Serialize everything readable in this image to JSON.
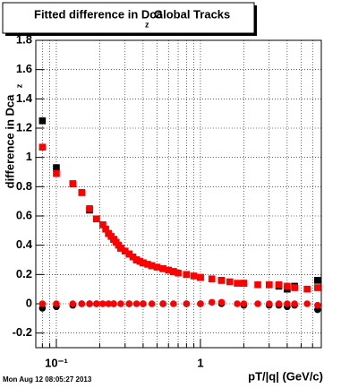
{
  "chart_data": {
    "type": "scatter",
    "title": "Fitted difference in Dca",
    "title_subscript": "z",
    "title_suffix": "Global Tracks",
    "y_label": "difference in Dca",
    "y_label_subscript": "z",
    "x_label": "pT/|q| (GeV/c)",
    "timestamp": "Mon Aug 12 08:05:27 2013",
    "log_x": true,
    "grid": true,
    "xlim": [
      0.072,
      6.9
    ],
    "xticks": [
      {
        "value": 0.1,
        "label": "10⁻¹"
      },
      1
    ],
    "xminorticks": [
      0.08,
      0.09,
      0.2,
      0.3,
      0.4,
      0.5,
      0.6,
      0.7,
      0.8,
      0.9,
      2,
      3,
      4,
      5,
      6
    ],
    "ylim": [
      -0.3,
      1.8
    ],
    "yticks": [
      -0.2,
      0,
      0.2,
      0.4,
      0.6,
      0.8,
      1,
      1.2,
      1.4,
      1.6,
      1.8
    ],
    "series": [
      {
        "color": "#000000",
        "marker": "square",
        "x": [
          0.08,
          0.1,
          0.13,
          0.15,
          0.17,
          0.19,
          0.21,
          0.23,
          0.25,
          0.28,
          0.32,
          0.36,
          0.4,
          0.46,
          0.55,
          0.65,
          0.8,
          1.0,
          1.4,
          2.0,
          3.0,
          3.5,
          4.0,
          4.5,
          6.5
        ],
        "values": [
          1.25,
          0.93,
          0.82,
          0.76,
          0.64,
          0.58,
          0.54,
          0.48,
          0.44,
          0.38,
          0.34,
          0.3,
          0.28,
          0.26,
          0.24,
          0.22,
          0.2,
          0.18,
          0.16,
          0.14,
          0.13,
          0.12,
          0.1,
          0.12,
          0.16
        ]
      },
      {
        "color": "#000000",
        "marker": "circle",
        "x": [
          0.08,
          0.1,
          0.13,
          0.15,
          0.17,
          0.19,
          0.25,
          0.32,
          0.4,
          0.55,
          0.8,
          1.0,
          1.4,
          2.0,
          3.0,
          3.5,
          4.0,
          4.5,
          6.5
        ],
        "values": [
          -0.03,
          -0.02,
          -0.01,
          0,
          0,
          0,
          0,
          0,
          0,
          0,
          0,
          0,
          0,
          -0.01,
          -0.01,
          -0.01,
          -0.02,
          -0.01,
          -0.04
        ]
      },
      {
        "color": "#ff0000",
        "marker": "square",
        "x": [
          0.08,
          0.1,
          0.13,
          0.15,
          0.17,
          0.19,
          0.21,
          0.22,
          0.23,
          0.24,
          0.25,
          0.26,
          0.27,
          0.28,
          0.3,
          0.32,
          0.34,
          0.36,
          0.38,
          0.4,
          0.43,
          0.46,
          0.5,
          0.55,
          0.6,
          0.65,
          0.7,
          0.8,
          0.9,
          1.0,
          1.2,
          1.4,
          1.6,
          1.8,
          2.0,
          2.5,
          3.0,
          3.5,
          4.0,
          4.5,
          5.5,
          6.5
        ],
        "values": [
          1.07,
          0.89,
          0.82,
          0.76,
          0.65,
          0.58,
          0.54,
          0.51,
          0.48,
          0.46,
          0.44,
          0.42,
          0.4,
          0.38,
          0.36,
          0.34,
          0.32,
          0.3,
          0.29,
          0.28,
          0.27,
          0.26,
          0.25,
          0.24,
          0.23,
          0.22,
          0.21,
          0.2,
          0.19,
          0.18,
          0.17,
          0.16,
          0.15,
          0.14,
          0.14,
          0.13,
          0.13,
          0.13,
          0.12,
          0.11,
          0.1,
          0.11
        ]
      },
      {
        "color": "#ff0000",
        "marker": "circle",
        "x": [
          0.08,
          0.1,
          0.13,
          0.15,
          0.17,
          0.19,
          0.21,
          0.23,
          0.25,
          0.28,
          0.32,
          0.36,
          0.4,
          0.46,
          0.55,
          0.65,
          0.8,
          1.0,
          1.2,
          1.4,
          1.8,
          2.0,
          2.5,
          3.0,
          3.5,
          4.0,
          4.5,
          5.5,
          6.5
        ],
        "values": [
          0,
          0,
          0,
          0,
          0,
          0,
          0,
          0,
          0,
          0,
          0,
          0,
          0,
          0,
          0,
          0,
          0,
          0,
          0.01,
          0.01,
          0,
          0,
          0,
          0,
          0,
          0,
          0,
          0,
          -0.01
        ]
      }
    ]
  }
}
